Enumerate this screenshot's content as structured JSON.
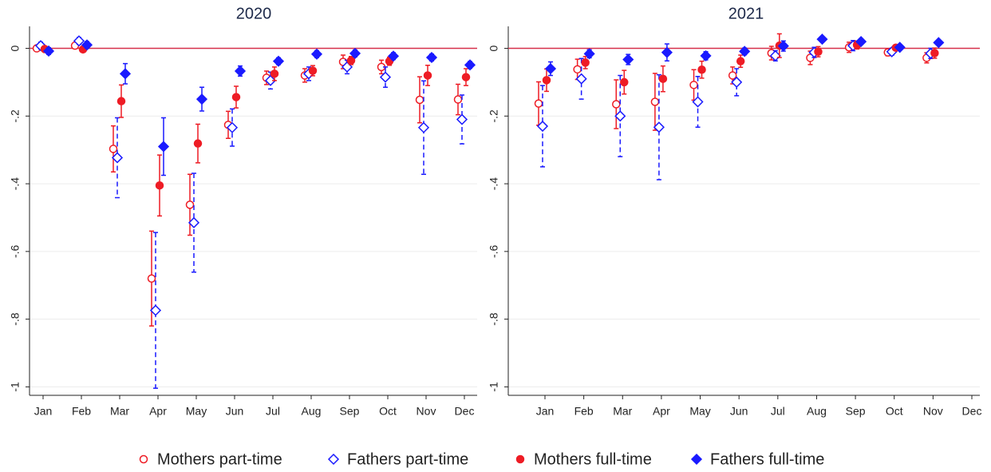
{
  "chart_data": [
    {
      "type": "errorbar",
      "title": "2020",
      "categories": [
        "Jan",
        "Feb",
        "Mar",
        "Apr",
        "May",
        "Jun",
        "Jul",
        "Aug",
        "Sep",
        "Oct",
        "Nov",
        "Dec"
      ],
      "ylim": [
        -1.025,
        0.065
      ],
      "yticks": [
        -1,
        {
          "value": -0.8,
          "label": "-.8"
        },
        {
          "value": -0.6,
          "label": "-.6"
        },
        {
          "value": -0.4,
          "label": "-.4"
        },
        {
          "value": -0.2,
          "label": "-.2"
        },
        0
      ],
      "grid": true,
      "reference_line": 0,
      "reference_color": "#d6304a",
      "legend_position": "bottom",
      "series": [
        {
          "name": "Mothers part-time",
          "color": "#ee1c25",
          "marker": "circle-open",
          "dash": false,
          "values": [
            0,
            0.008,
            -0.297,
            -0.68,
            -0.462,
            -0.226,
            -0.087,
            -0.08,
            -0.04,
            -0.055,
            -0.152,
            -0.151
          ],
          "errors": [
            0.005,
            0.005,
            0.068,
            0.14,
            0.09,
            0.04,
            0.02,
            0.02,
            0.02,
            0.02,
            0.068,
            0.045
          ]
        },
        {
          "name": "Fathers part-time",
          "color": "#1a1aff",
          "marker": "diamond-open",
          "dash": true,
          "values": [
            0.008,
            0.022,
            -0.323,
            -0.774,
            -0.515,
            -0.234,
            -0.095,
            -0.075,
            -0.055,
            -0.085,
            -0.234,
            -0.21
          ],
          "errors": [
            0.01,
            0.01,
            0.118,
            0.23,
            0.146,
            0.055,
            0.025,
            0.02,
            0.02,
            0.03,
            0.138,
            0.072
          ]
        },
        {
          "name": "Mothers full-time",
          "color": "#ee1c25",
          "marker": "circle",
          "dash": false,
          "values": [
            -0.002,
            -0.003,
            -0.156,
            -0.405,
            -0.281,
            -0.144,
            -0.075,
            -0.066,
            -0.036,
            -0.038,
            -0.08,
            -0.085
          ],
          "errors": [
            0.005,
            0.005,
            0.048,
            0.09,
            0.057,
            0.032,
            0.02,
            0.015,
            0.012,
            0.012,
            0.03,
            0.025
          ]
        },
        {
          "name": "Fathers full-time",
          "color": "#1a1aff",
          "marker": "diamond",
          "dash": false,
          "values": [
            -0.008,
            0.01,
            -0.075,
            -0.29,
            -0.15,
            -0.067,
            -0.038,
            -0.017,
            -0.015,
            -0.023,
            -0.027,
            -0.049
          ],
          "errors": [
            0.01,
            0.01,
            0.03,
            0.085,
            0.035,
            0.015,
            0.01,
            0.01,
            0.01,
            0.01,
            0.01,
            0.01
          ]
        }
      ]
    },
    {
      "type": "errorbar",
      "title": "2021",
      "categories": [
        "Jan",
        "Feb",
        "Mar",
        "Apr",
        "May",
        "Jun",
        "Jul",
        "Aug",
        "Sep",
        "Oct",
        "Nov",
        "Dec"
      ],
      "ylim": [
        -1.025,
        0.065
      ],
      "yticks": [
        -1,
        {
          "value": -0.8,
          "label": "-.8"
        },
        {
          "value": -0.6,
          "label": "-.6"
        },
        {
          "value": -0.4,
          "label": "-.4"
        },
        {
          "value": -0.2,
          "label": "-.2"
        },
        0
      ],
      "grid": true,
      "reference_line": 0,
      "reference_color": "#d6304a",
      "series": [
        {
          "color": "#ee1c25",
          "marker": "circle-open",
          "dash": false,
          "values": [
            -0.163,
            -0.062,
            -0.165,
            -0.158,
            -0.108,
            -0.08,
            -0.014,
            -0.028,
            0.003,
            -0.012,
            -0.028,
            null
          ],
          "errors": [
            0.064,
            0.03,
            0.072,
            0.084,
            0.045,
            0.025,
            0.02,
            0.02,
            0.015,
            0.01,
            0.015,
            null
          ]
        },
        {
          "color": "#1a1aff",
          "marker": "diamond-open",
          "dash": true,
          "values": [
            -0.23,
            -0.09,
            -0.2,
            -0.233,
            -0.158,
            -0.1,
            -0.022,
            -0.012,
            0.008,
            -0.01,
            -0.015,
            null
          ],
          "errors": [
            0.12,
            0.06,
            0.12,
            0.155,
            0.075,
            0.04,
            0.015,
            0.015,
            0.015,
            0.01,
            0.015,
            null
          ]
        },
        {
          "color": "#ee1c25",
          "marker": "circle",
          "dash": false,
          "values": [
            -0.094,
            -0.042,
            -0.1,
            -0.09,
            -0.063,
            -0.038,
            0.008,
            -0.01,
            0.01,
            0.002,
            -0.014,
            null
          ],
          "errors": [
            0.033,
            0.018,
            0.035,
            0.038,
            0.025,
            0.018,
            0.035,
            0.015,
            0.012,
            0.008,
            0.015,
            null
          ]
        },
        {
          "color": "#1a1aff",
          "marker": "diamond",
          "dash": false,
          "values": [
            -0.06,
            -0.016,
            -0.033,
            -0.012,
            -0.022,
            -0.009,
            0.007,
            0.027,
            0.02,
            0.003,
            0.017,
            null
          ],
          "errors": [
            0.02,
            0.012,
            0.015,
            0.025,
            0.012,
            0.01,
            0.015,
            0.008,
            0.008,
            0.005,
            0.005,
            null
          ]
        }
      ]
    }
  ]
}
